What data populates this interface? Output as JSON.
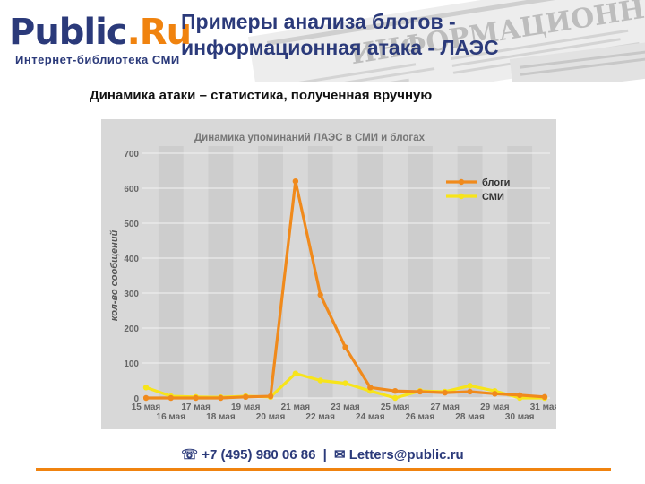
{
  "header": {
    "logo_main": "Public",
    "logo_dot": ".",
    "logo_ru": "Ru",
    "tagline": "Интернет-библиотека СМИ",
    "title_line1": "Примеры анализа блогов -",
    "title_line2": "информационная атака - ЛАЭС",
    "newspaper_text": "ИНФОРМАЦИОННЫЙ ВЕСТНИК"
  },
  "subtitle": "Динамика атаки – статистика, полученная вручную",
  "footer": {
    "phone_icon": "phone-icon",
    "phone": "+7 (495) 980 06 86",
    "separator": "|",
    "mail_icon": "envelope-icon",
    "email": "Letters@public.ru"
  },
  "colors": {
    "brand_blue": "#2b3a7a",
    "accent_orange": "#f0830f",
    "series_blogs": "#f08a1c",
    "series_media": "#f7e41a",
    "chart_bg": "#d8d8d8"
  },
  "chart_data": {
    "type": "line",
    "title": "Динамика упоминаний ЛАЭС в СМИ и блогах",
    "xlabel": "",
    "ylabel": "кол-во сообщений",
    "ylim": [
      0,
      700
    ],
    "yticks": [
      0,
      100,
      200,
      300,
      400,
      500,
      600,
      700
    ],
    "grid": true,
    "legend_position": "top-right",
    "categories": [
      "15 мая",
      "16 мая",
      "17 мая",
      "18 мая",
      "19 мая",
      "20 мая",
      "21 мая",
      "22 мая",
      "23 мая",
      "24 мая",
      "25 мая",
      "26 мая",
      "27 мая",
      "28 мая",
      "29 мая",
      "30 мая",
      "31 мая"
    ],
    "series": [
      {
        "name": "блоги",
        "color": "#f08a1c",
        "values": [
          0,
          0,
          0,
          0,
          3,
          5,
          620,
          295,
          145,
          30,
          20,
          18,
          15,
          18,
          12,
          8,
          3
        ]
      },
      {
        "name": "СМИ",
        "color": "#f7e41a",
        "values": [
          30,
          5,
          3,
          2,
          5,
          3,
          70,
          50,
          42,
          20,
          0,
          20,
          18,
          35,
          20,
          0,
          0
        ]
      }
    ]
  }
}
